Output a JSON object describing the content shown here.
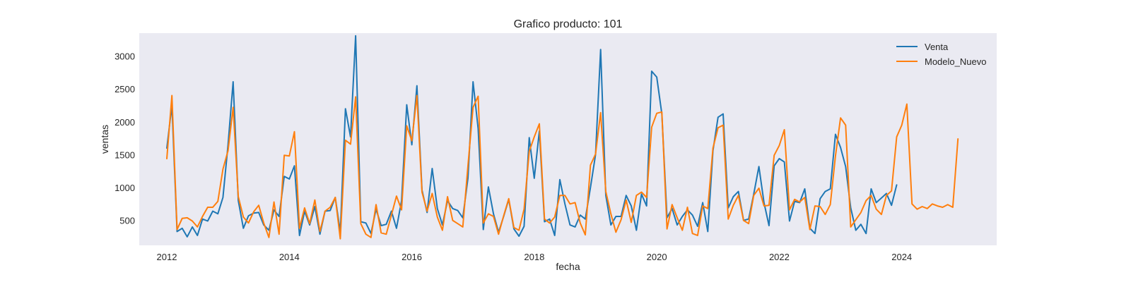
{
  "chart_data": {
    "type": "line",
    "title": "Grafico producto: 101",
    "xlabel": "fecha",
    "ylabel": "ventas",
    "xlim": [
      2011.55,
      2025.55
    ],
    "ylim": [
      120,
      3350
    ],
    "x_ticks": [
      2012,
      2014,
      2016,
      2018,
      2020,
      2022,
      2024
    ],
    "y_ticks": [
      500,
      1000,
      1500,
      2000,
      2500,
      3000
    ],
    "grid": false,
    "legend_position": "top-right",
    "background_color": "#eaeaf2",
    "series": [
      {
        "name": "Venta",
        "color": "#1f77b4",
        "x": [
          2012.0,
          2012.083,
          2012.167,
          2012.25,
          2012.333,
          2012.417,
          2012.5,
          2012.583,
          2012.667,
          2012.75,
          2012.833,
          2012.917,
          2013.0,
          2013.083,
          2013.167,
          2013.25,
          2013.333,
          2013.417,
          2013.5,
          2013.583,
          2013.667,
          2013.75,
          2013.833,
          2013.917,
          2014.0,
          2014.083,
          2014.167,
          2014.25,
          2014.333,
          2014.417,
          2014.5,
          2014.583,
          2014.667,
          2014.75,
          2014.833,
          2014.917,
          2015.0,
          2015.083,
          2015.167,
          2015.25,
          2015.333,
          2015.417,
          2015.5,
          2015.583,
          2015.667,
          2015.75,
          2015.833,
          2015.917,
          2016.0,
          2016.083,
          2016.167,
          2016.25,
          2016.333,
          2016.417,
          2016.5,
          2016.583,
          2016.667,
          2016.75,
          2016.833,
          2016.917,
          2017.0,
          2017.083,
          2017.167,
          2017.25,
          2017.333,
          2017.417,
          2017.5,
          2017.583,
          2017.667,
          2017.75,
          2017.833,
          2017.917,
          2018.0,
          2018.083,
          2018.167,
          2018.25,
          2018.333,
          2018.417,
          2018.5,
          2018.583,
          2018.667,
          2018.75,
          2018.833,
          2018.917,
          2019.0,
          2019.083,
          2019.167,
          2019.25,
          2019.333,
          2019.417,
          2019.5,
          2019.583,
          2019.667,
          2019.75,
          2019.833,
          2019.917,
          2020.0,
          2020.083,
          2020.167,
          2020.25,
          2020.333,
          2020.417,
          2020.5,
          2020.583,
          2020.667,
          2020.75,
          2020.833,
          2020.917,
          2021.0,
          2021.083,
          2021.167,
          2021.25,
          2021.333,
          2021.417,
          2021.5,
          2021.583,
          2021.667,
          2021.75,
          2021.833,
          2021.917,
          2022.0,
          2022.083,
          2022.167,
          2022.25,
          2022.333,
          2022.417,
          2022.5,
          2022.583,
          2022.667,
          2022.75,
          2022.833,
          2022.917,
          2023.0,
          2023.083,
          2023.167,
          2023.25,
          2023.333,
          2023.417,
          2023.5,
          2023.583,
          2023.667,
          2023.75,
          2023.833,
          2023.917
        ],
        "y": [
          1600,
          2250,
          330,
          380,
          250,
          400,
          270,
          520,
          490,
          640,
          600,
          850,
          1650,
          2610,
          800,
          380,
          570,
          610,
          620,
          430,
          350,
          660,
          560,
          1170,
          1130,
          1330,
          270,
          640,
          430,
          710,
          290,
          640,
          650,
          850,
          320,
          2200,
          1770,
          3310,
          480,
          460,
          300,
          670,
          420,
          440,
          640,
          380,
          800,
          2260,
          1650,
          2550,
          960,
          620,
          1290,
          680,
          430,
          800,
          680,
          650,
          540,
          1140,
          2610,
          1900,
          360,
          1010,
          600,
          320,
          560,
          820,
          370,
          260,
          410,
          1760,
          1140,
          1860,
          480,
          520,
          270,
          1120,
          750,
          430,
          400,
          580,
          520,
          1000,
          1500,
          3100,
          880,
          430,
          560,
          560,
          880,
          720,
          350,
          900,
          720,
          2770,
          2680,
          2120,
          540,
          680,
          430,
          560,
          660,
          580,
          410,
          770,
          330,
          1560,
          2070,
          2120,
          690,
          860,
          940,
          500,
          520,
          900,
          1320,
          770,
          420,
          1330,
          1440,
          1390,
          490,
          790,
          770,
          980,
          380,
          300,
          830,
          940,
          980,
          1810,
          1610,
          1320,
          690,
          350,
          440,
          300,
          980,
          770,
          840,
          910,
          730,
          1040
        ]
      },
      {
        "name": "Modelo_Nuevo",
        "color": "#ff7f0e",
        "x": [
          2012.0,
          2012.083,
          2012.167,
          2012.25,
          2012.333,
          2012.417,
          2012.5,
          2012.583,
          2012.667,
          2012.75,
          2012.833,
          2012.917,
          2013.0,
          2013.083,
          2013.167,
          2013.25,
          2013.333,
          2013.417,
          2013.5,
          2013.583,
          2013.667,
          2013.75,
          2013.833,
          2013.917,
          2014.0,
          2014.083,
          2014.167,
          2014.25,
          2014.333,
          2014.417,
          2014.5,
          2014.583,
          2014.667,
          2014.75,
          2014.833,
          2014.917,
          2015.0,
          2015.083,
          2015.167,
          2015.25,
          2015.333,
          2015.417,
          2015.5,
          2015.583,
          2015.667,
          2015.75,
          2015.833,
          2015.917,
          2016.0,
          2016.083,
          2016.167,
          2016.25,
          2016.333,
          2016.417,
          2016.5,
          2016.583,
          2016.667,
          2016.75,
          2016.833,
          2016.917,
          2017.0,
          2017.083,
          2017.167,
          2017.25,
          2017.333,
          2017.417,
          2017.5,
          2017.583,
          2017.667,
          2017.75,
          2017.833,
          2017.917,
          2018.0,
          2018.083,
          2018.167,
          2018.25,
          2018.333,
          2018.417,
          2018.5,
          2018.583,
          2018.667,
          2018.75,
          2018.833,
          2018.917,
          2019.0,
          2019.083,
          2019.167,
          2019.25,
          2019.333,
          2019.417,
          2019.5,
          2019.583,
          2019.667,
          2019.75,
          2019.833,
          2019.917,
          2020.0,
          2020.083,
          2020.167,
          2020.25,
          2020.333,
          2020.417,
          2020.5,
          2020.583,
          2020.667,
          2020.75,
          2020.833,
          2020.917,
          2021.0,
          2021.083,
          2021.167,
          2021.25,
          2021.333,
          2021.417,
          2021.5,
          2021.583,
          2021.667,
          2021.75,
          2021.833,
          2021.917,
          2022.0,
          2022.083,
          2022.167,
          2022.25,
          2022.333,
          2022.417,
          2022.5,
          2022.583,
          2022.667,
          2022.75,
          2022.833,
          2022.917,
          2023.0,
          2023.083,
          2023.167,
          2023.25,
          2023.333,
          2023.417,
          2023.5,
          2023.583,
          2023.667,
          2023.75,
          2023.833,
          2023.917,
          2024.0,
          2024.083,
          2024.167,
          2024.25,
          2024.333,
          2024.417,
          2024.5,
          2024.583,
          2024.667,
          2024.75,
          2024.833,
          2024.917
        ],
        "y": [
          1440,
          2400,
          360,
          530,
          540,
          490,
          400,
          560,
          700,
          700,
          790,
          1280,
          1560,
          2220,
          860,
          550,
          460,
          630,
          730,
          460,
          240,
          780,
          290,
          1490,
          1480,
          1850,
          380,
          690,
          450,
          810,
          330,
          640,
          700,
          850,
          220,
          1720,
          1660,
          2380,
          450,
          290,
          240,
          740,
          310,
          290,
          580,
          870,
          660,
          1940,
          1710,
          2400,
          930,
          640,
          910,
          550,
          350,
          860,
          500,
          450,
          400,
          1330,
          2220,
          2390,
          460,
          600,
          560,
          290,
          570,
          830,
          390,
          350,
          670,
          1550,
          1770,
          1970,
          520,
          460,
          550,
          880,
          880,
          750,
          770,
          460,
          280,
          1340,
          1510,
          2140,
          940,
          600,
          320,
          510,
          810,
          470,
          880,
          930,
          850,
          1920,
          2130,
          2150,
          370,
          740,
          540,
          350,
          700,
          300,
          270,
          720,
          680,
          1600,
          1910,
          1950,
          520,
          730,
          880,
          500,
          450,
          880,
          990,
          720,
          730,
          1490,
          1640,
          1880,
          660,
          820,
          780,
          850,
          360,
          720,
          710,
          590,
          740,
          1480,
          2060,
          1950,
          400,
          510,
          620,
          800,
          880,
          670,
          590,
          880,
          950,
          1770,
          1950,
          2270,
          750,
          670,
          710,
          680,
          750,
          720,
          700,
          740,
          700,
          1740
        ]
      }
    ]
  }
}
